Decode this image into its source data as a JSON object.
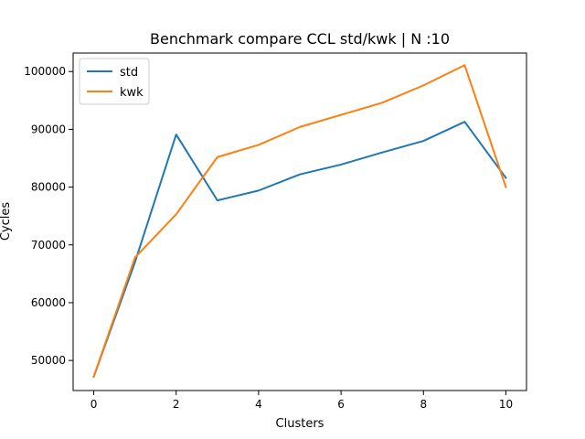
{
  "chart_data": {
    "type": "line",
    "title": "Benchmark compare CCL std/kwk | N :10",
    "xlabel": "Clusters",
    "ylabel": "Cycles",
    "x": [
      0,
      1,
      2,
      3,
      4,
      5,
      6,
      7,
      8,
      9,
      10
    ],
    "xlim": [
      -0.5,
      10.5
    ],
    "ylim": [
      44800,
      103200
    ],
    "xticks": [
      0,
      2,
      4,
      6,
      8,
      10
    ],
    "yticks": [
      50000,
      60000,
      70000,
      80000,
      90000,
      100000
    ],
    "xtick_labels": [
      "0",
      "2",
      "4",
      "6",
      "8",
      "10"
    ],
    "ytick_labels": [
      "50000",
      "60000",
      "70000",
      "80000",
      "90000",
      "100000"
    ],
    "grid": false,
    "legend_position": "top-left",
    "series": [
      {
        "name": "std",
        "color": "#1f77b4",
        "values": [
          47200,
          67000,
          89100,
          77700,
          79400,
          82200,
          83900,
          86000,
          88000,
          91300,
          81600
        ]
      },
      {
        "name": "kwk",
        "color": "#ff7f0e",
        "values": [
          47200,
          67800,
          75300,
          85200,
          87300,
          90400,
          92500,
          94600,
          97600,
          101100,
          80000
        ]
      }
    ]
  }
}
